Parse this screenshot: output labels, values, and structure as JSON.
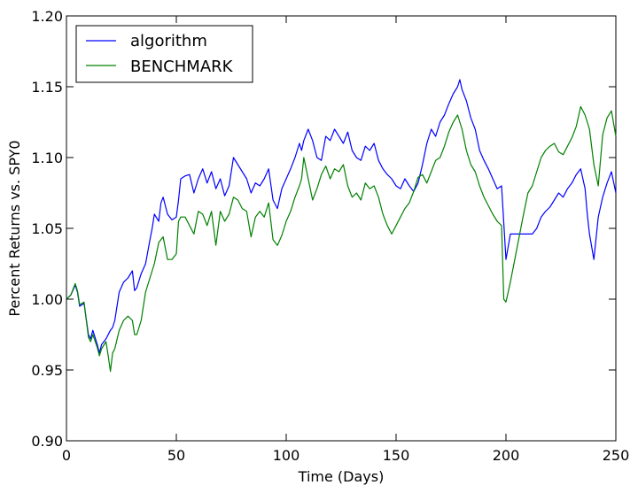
{
  "chart_data": {
    "type": "line",
    "title": "",
    "xlabel": "Time (Days)",
    "ylabel": "Percent Returns vs. SPY0",
    "xlim": [
      0,
      250
    ],
    "ylim": [
      0.9,
      1.2
    ],
    "xticks": [
      0,
      50,
      100,
      150,
      200,
      250
    ],
    "yticks": [
      0.9,
      0.95,
      1.0,
      1.05,
      1.1,
      1.15,
      1.2
    ],
    "xtick_labels": [
      "0",
      "50",
      "100",
      "150",
      "200",
      "250"
    ],
    "ytick_labels": [
      "0.90",
      "0.95",
      "1.00",
      "1.05",
      "1.10",
      "1.15",
      "1.20"
    ],
    "grid": false,
    "legend_position": "top-left",
    "series": [
      {
        "name": "algorithm",
        "color": "#0000ff",
        "x": [
          0,
          2,
          4,
          5,
          6,
          8,
          10,
          11,
          12,
          14,
          15,
          16,
          18,
          20,
          21,
          22,
          24,
          26,
          28,
          30,
          31,
          32,
          34,
          36,
          38,
          39,
          40,
          42,
          43,
          44,
          46,
          48,
          50,
          51,
          52,
          54,
          56,
          58,
          60,
          62,
          64,
          66,
          68,
          70,
          72,
          74,
          76,
          78,
          80,
          82,
          84,
          86,
          88,
          90,
          92,
          94,
          96,
          98,
          100,
          102,
          104,
          106,
          107,
          108,
          110,
          112,
          114,
          116,
          118,
          120,
          122,
          124,
          126,
          128,
          130,
          132,
          134,
          136,
          138,
          140,
          142,
          144,
          146,
          148,
          150,
          152,
          154,
          156,
          158,
          160,
          162,
          164,
          166,
          168,
          170,
          172,
          174,
          176,
          178,
          179,
          180,
          182,
          184,
          186,
          188,
          190,
          192,
          194,
          196,
          198,
          200,
          202,
          204,
          206,
          208,
          210,
          212,
          214,
          216,
          218,
          220,
          222,
          224,
          226,
          228,
          230,
          232,
          234,
          236,
          237,
          238,
          240,
          242,
          244,
          246,
          248,
          250
        ],
        "y": [
          1.0,
          1.003,
          1.01,
          1.005,
          0.995,
          0.997,
          0.975,
          0.972,
          0.978,
          0.968,
          0.962,
          0.968,
          0.972,
          0.978,
          0.98,
          0.985,
          1.005,
          1.012,
          1.015,
          1.02,
          1.006,
          1.008,
          1.018,
          1.025,
          1.042,
          1.05,
          1.06,
          1.055,
          1.068,
          1.072,
          1.06,
          1.056,
          1.058,
          1.07,
          1.085,
          1.087,
          1.088,
          1.075,
          1.085,
          1.092,
          1.082,
          1.09,
          1.078,
          1.085,
          1.073,
          1.08,
          1.1,
          1.095,
          1.09,
          1.085,
          1.075,
          1.082,
          1.08,
          1.085,
          1.092,
          1.07,
          1.064,
          1.078,
          1.085,
          1.092,
          1.1,
          1.11,
          1.105,
          1.112,
          1.12,
          1.112,
          1.1,
          1.098,
          1.115,
          1.112,
          1.12,
          1.115,
          1.11,
          1.118,
          1.105,
          1.1,
          1.098,
          1.108,
          1.105,
          1.11,
          1.098,
          1.092,
          1.088,
          1.085,
          1.08,
          1.078,
          1.085,
          1.08,
          1.076,
          1.082,
          1.095,
          1.11,
          1.12,
          1.115,
          1.125,
          1.13,
          1.138,
          1.145,
          1.15,
          1.155,
          1.148,
          1.14,
          1.128,
          1.12,
          1.105,
          1.098,
          1.092,
          1.085,
          1.078,
          1.08,
          1.028,
          1.046,
          1.046,
          1.046,
          1.046,
          1.046,
          1.046,
          1.05,
          1.058,
          1.062,
          1.065,
          1.07,
          1.075,
          1.072,
          1.078,
          1.082,
          1.088,
          1.092,
          1.078,
          1.06,
          1.046,
          1.028,
          1.058,
          1.072,
          1.082,
          1.09,
          1.075
        ]
      },
      {
        "name": "BENCHMARK",
        "color": "#008000",
        "x": [
          0,
          2,
          4,
          5,
          6,
          8,
          10,
          11,
          12,
          14,
          15,
          16,
          18,
          19,
          20,
          21,
          22,
          24,
          26,
          28,
          30,
          31,
          32,
          34,
          36,
          38,
          40,
          42,
          43,
          44,
          46,
          48,
          50,
          51,
          52,
          54,
          56,
          58,
          60,
          62,
          64,
          66,
          68,
          70,
          72,
          74,
          76,
          78,
          80,
          82,
          84,
          86,
          88,
          90,
          92,
          94,
          96,
          98,
          100,
          102,
          104,
          106,
          107,
          108,
          110,
          112,
          114,
          116,
          118,
          120,
          122,
          124,
          126,
          128,
          130,
          132,
          134,
          136,
          138,
          140,
          142,
          144,
          146,
          148,
          150,
          152,
          154,
          156,
          158,
          160,
          162,
          164,
          166,
          168,
          170,
          172,
          174,
          176,
          178,
          180,
          182,
          184,
          186,
          188,
          190,
          192,
          194,
          196,
          198,
          199,
          200,
          202,
          204,
          206,
          208,
          210,
          212,
          214,
          216,
          218,
          220,
          222,
          224,
          226,
          228,
          230,
          232,
          234,
          236,
          238,
          240,
          242,
          244,
          246,
          248,
          250
        ],
        "y": [
          1.0,
          1.003,
          1.011,
          1.006,
          0.996,
          0.998,
          0.973,
          0.97,
          0.975,
          0.966,
          0.96,
          0.965,
          0.97,
          0.96,
          0.949,
          0.962,
          0.965,
          0.978,
          0.985,
          0.988,
          0.985,
          0.975,
          0.975,
          0.985,
          1.005,
          1.015,
          1.025,
          1.04,
          1.042,
          1.044,
          1.028,
          1.028,
          1.032,
          1.055,
          1.058,
          1.058,
          1.052,
          1.046,
          1.062,
          1.06,
          1.052,
          1.062,
          1.038,
          1.062,
          1.055,
          1.06,
          1.072,
          1.07,
          1.064,
          1.062,
          1.044,
          1.058,
          1.062,
          1.058,
          1.068,
          1.042,
          1.038,
          1.045,
          1.055,
          1.062,
          1.072,
          1.08,
          1.085,
          1.1,
          1.085,
          1.07,
          1.078,
          1.088,
          1.094,
          1.085,
          1.092,
          1.09,
          1.095,
          1.08,
          1.072,
          1.075,
          1.07,
          1.082,
          1.078,
          1.08,
          1.072,
          1.06,
          1.052,
          1.046,
          1.052,
          1.058,
          1.064,
          1.068,
          1.076,
          1.086,
          1.088,
          1.082,
          1.09,
          1.098,
          1.1,
          1.108,
          1.118,
          1.125,
          1.13,
          1.12,
          1.105,
          1.095,
          1.09,
          1.08,
          1.072,
          1.066,
          1.06,
          1.055,
          1.052,
          1.0,
          0.998,
          1.012,
          1.028,
          1.044,
          1.06,
          1.075,
          1.08,
          1.09,
          1.1,
          1.105,
          1.108,
          1.11,
          1.104,
          1.102,
          1.108,
          1.114,
          1.122,
          1.136,
          1.13,
          1.12,
          1.095,
          1.08,
          1.116,
          1.128,
          1.133,
          1.115
        ]
      }
    ]
  }
}
